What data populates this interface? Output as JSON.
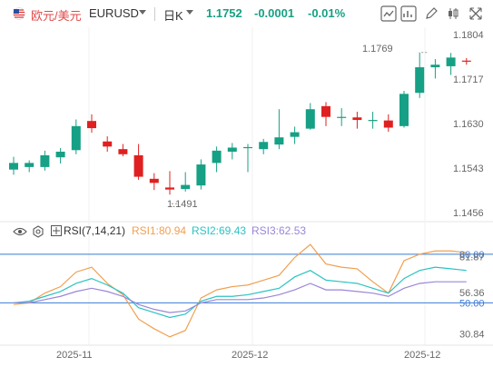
{
  "header": {
    "symbol_cn": "欧元/美元",
    "symbol_en": "EURUSD",
    "interval": "日K",
    "last_price": "1.1752",
    "change": "-0.0001",
    "change_pct": "-0.01%"
  },
  "toolbar": {
    "icons": [
      "line-chart-icon",
      "indicator-icon",
      "draw-icon",
      "candle-settings-icon",
      "fullscreen-icon"
    ]
  },
  "colors": {
    "up": "#16a085",
    "down": "#e02020",
    "rsi1": "#f0a050",
    "rsi2": "#2cc3c3",
    "rsi3": "#9a86d8",
    "level": "#3a7bd5"
  },
  "price_axis": {
    "labels": [
      "1.1804",
      "1.1717",
      "1.1630",
      "1.1543",
      "1.1456"
    ],
    "values": [
      1.1804,
      1.1717,
      1.163,
      1.1543,
      1.1456
    ]
  },
  "annotations": {
    "high": "1.1769",
    "low": "1.1491"
  },
  "rsi": {
    "name": "RSI(7,14,21)",
    "rsi1_label": "RSI1:80.94",
    "rsi2_label": "RSI2:69.43",
    "rsi3_label": "RSI3:62.53",
    "axis_labels": [
      "80.00",
      "81.87",
      "56.36",
      "50.00",
      "30.84"
    ],
    "levels": [
      80,
      50
    ]
  },
  "x_axis": {
    "labels": [
      "2025-11",
      "2025-12",
      "2025-12"
    ]
  },
  "chart_data": {
    "type": "candlestick",
    "candles": [
      {
        "o": 1.154,
        "h": 1.1565,
        "l": 1.153,
        "c": 1.1553
      },
      {
        "o": 1.1545,
        "h": 1.1558,
        "l": 1.1535,
        "c": 1.1553
      },
      {
        "o": 1.1545,
        "h": 1.1577,
        "l": 1.1538,
        "c": 1.1568
      },
      {
        "o": 1.1564,
        "h": 1.1582,
        "l": 1.1552,
        "c": 1.1575
      },
      {
        "o": 1.1578,
        "h": 1.1638,
        "l": 1.157,
        "c": 1.1625
      },
      {
        "o": 1.1635,
        "h": 1.1648,
        "l": 1.1612,
        "c": 1.1621
      },
      {
        "o": 1.1595,
        "h": 1.1605,
        "l": 1.1575,
        "c": 1.1585
      },
      {
        "o": 1.158,
        "h": 1.159,
        "l": 1.1566,
        "c": 1.157
      },
      {
        "o": 1.1568,
        "h": 1.159,
        "l": 1.152,
        "c": 1.1526
      },
      {
        "o": 1.1522,
        "h": 1.1533,
        "l": 1.15,
        "c": 1.1514
      },
      {
        "o": 1.1505,
        "h": 1.1537,
        "l": 1.1491,
        "c": 1.1501
      },
      {
        "o": 1.1502,
        "h": 1.1535,
        "l": 1.1497,
        "c": 1.151
      },
      {
        "o": 1.1509,
        "h": 1.156,
        "l": 1.1501,
        "c": 1.155
      },
      {
        "o": 1.1553,
        "h": 1.1585,
        "l": 1.1535,
        "c": 1.1577
      },
      {
        "o": 1.1575,
        "h": 1.1592,
        "l": 1.156,
        "c": 1.1583
      },
      {
        "o": 1.1583,
        "h": 1.159,
        "l": 1.1535,
        "c": 1.1584
      },
      {
        "o": 1.158,
        "h": 1.16,
        "l": 1.157,
        "c": 1.1594
      },
      {
        "o": 1.1589,
        "h": 1.1658,
        "l": 1.158,
        "c": 1.1603
      },
      {
        "o": 1.1604,
        "h": 1.1624,
        "l": 1.159,
        "c": 1.1613
      },
      {
        "o": 1.162,
        "h": 1.167,
        "l": 1.1618,
        "c": 1.1658
      },
      {
        "o": 1.1664,
        "h": 1.1672,
        "l": 1.1625,
        "c": 1.1643
      },
      {
        "o": 1.1643,
        "h": 1.166,
        "l": 1.1625,
        "c": 1.1643
      },
      {
        "o": 1.1642,
        "h": 1.1653,
        "l": 1.162,
        "c": 1.1637
      },
      {
        "o": 1.1637,
        "h": 1.1653,
        "l": 1.162,
        "c": 1.1637
      },
      {
        "o": 1.1636,
        "h": 1.1648,
        "l": 1.1614,
        "c": 1.1622
      },
      {
        "o": 1.1625,
        "h": 1.1694,
        "l": 1.1622,
        "c": 1.1688
      },
      {
        "o": 1.169,
        "h": 1.1769,
        "l": 1.168,
        "c": 1.174
      },
      {
        "o": 1.174,
        "h": 1.1756,
        "l": 1.1718,
        "c": 1.1745
      },
      {
        "o": 1.1742,
        "h": 1.1768,
        "l": 1.1725,
        "c": 1.1759
      },
      {
        "o": 1.1753,
        "h": 1.1758,
        "l": 1.1745,
        "c": 1.1752
      }
    ],
    "rsi1": [
      49,
      50,
      56,
      60,
      69,
      72,
      62,
      55,
      40,
      34,
      29,
      33,
      53,
      58,
      60,
      61,
      64,
      67,
      78,
      86,
      74,
      72,
      71,
      63,
      56,
      76,
      80,
      82,
      82,
      81
    ],
    "rsi2": [
      50,
      51,
      54,
      57,
      62,
      65,
      61,
      56,
      47,
      44,
      41,
      43,
      51,
      54,
      54,
      55,
      57,
      59,
      66,
      70,
      64,
      63,
      62,
      59,
      56,
      65,
      70,
      72,
      71,
      70
    ],
    "rsi3": [
      50,
      50,
      52,
      54,
      57,
      59,
      57,
      54,
      49,
      46,
      44,
      45,
      50,
      52,
      52,
      52,
      53,
      55,
      58,
      62,
      58,
      58,
      57,
      56,
      54,
      59,
      62,
      63,
      63,
      63
    ]
  }
}
